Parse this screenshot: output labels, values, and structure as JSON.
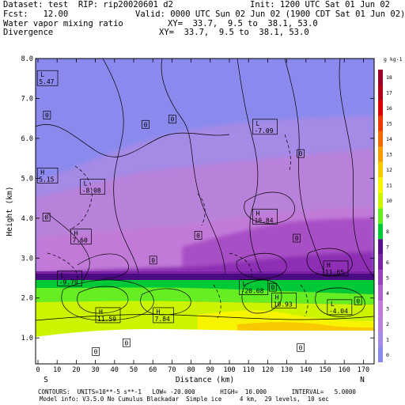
{
  "header": {
    "dataset": "Dataset: test  RIP: rip20020601 d2",
    "init": "Init: 1200 UTC Sat 01 Jun 02",
    "fcst": "Fcst:   12.00",
    "valid": "Valid: 0000 UTC Sun 02 Jun 02 (1900 CDT Sat 01 Jun 02)",
    "field1": "Water vapor mixing ratio",
    "field1_xy": "XY=  33.7,  9.5 to  38.1, 53.0",
    "field2": "Divergence",
    "field2_xy": "XY=  33.7,  9.5 to  38.1, 53.0"
  },
  "footer": {
    "contours": "CONTOURS:  UNITS=10**-5 s**-1   LOW= -20.000       HIGH=  10.000       INTERVAL=   5.0000",
    "model_info": "Model info: V3.5.0 No Cumulus Blackadar  Simple ice     4 km,  29 levels,  10 sec"
  },
  "chart_data": {
    "type": "heatmap",
    "xlabel": "Distance (km)",
    "ylabel": "Height (km)",
    "x_ticks": [
      0,
      10,
      20,
      30,
      40,
      50,
      60,
      70,
      80,
      90,
      100,
      110,
      120,
      130,
      140,
      150,
      160,
      170
    ],
    "y_ticks": [
      "1.0",
      "2.0",
      "3.0",
      "4.0",
      "5.0",
      "6.0",
      "7.0",
      "8.0"
    ],
    "xlim": [
      0,
      175
    ],
    "ylim": [
      0.35,
      8.0
    ],
    "x_end_labels": {
      "left": "S",
      "right": "N"
    },
    "colorbar": {
      "unit": "g kg-1",
      "levels": [
        "0",
        "1",
        "2",
        "3",
        "4",
        "5",
        "6",
        "7",
        "8",
        "9",
        "10",
        "11",
        "12",
        "13",
        "14",
        "15",
        "16",
        "17",
        "18"
      ],
      "colors": [
        "#8a8aee",
        "#a58ae6",
        "#b882da",
        "#c27ad8",
        "#b060cc",
        "#9a3fbe",
        "#7a22a8",
        "#5a0f8c",
        "#00c836",
        "#66ee22",
        "#ccf400",
        "#f8f400",
        "#f8c800",
        "#f89c00",
        "#f06a00",
        "#e83a00",
        "#d80000",
        "#b00018",
        "#980028"
      ]
    },
    "labels": [
      {
        "type": "H",
        "value": "5.15",
        "x": 0.5,
        "y": 5.08
      },
      {
        "type": "L",
        "value": "5.47",
        "x": 0.5,
        "y": 7.52
      },
      {
        "type": "L",
        "value": "-8.08",
        "x": 23,
        "y": 4.8
      },
      {
        "type": "H",
        "value": "7.60",
        "x": 18,
        "y": 3.55
      },
      {
        "type": "L",
        "value": "-9.79",
        "x": 11,
        "y": 2.5
      },
      {
        "type": "H",
        "value": "11.59",
        "x": 31,
        "y": 1.58
      },
      {
        "type": "H",
        "value": "7.84",
        "x": 61,
        "y": 1.58
      },
      {
        "type": "L",
        "value": "-7.09",
        "x": 113,
        "y": 6.3
      },
      {
        "type": "H",
        "value": "10.84",
        "x": 113,
        "y": 4.05
      },
      {
        "type": "L",
        "value": "-20.68",
        "x": 106,
        "y": 2.28
      },
      {
        "type": "H",
        "value": "10.93",
        "x": 123,
        "y": 1.95
      },
      {
        "type": "H",
        "value": "11.65",
        "x": 150,
        "y": 2.75
      },
      {
        "type": "L",
        "value": "-4.04",
        "x": 152,
        "y": 1.78
      }
    ],
    "zero_labels": [
      {
        "value": "0",
        "x": 4.5,
        "y": 6.58
      },
      {
        "value": "0",
        "x": 56,
        "y": 6.35
      },
      {
        "value": "0",
        "x": 70,
        "y": 6.48
      },
      {
        "value": "0",
        "x": 137,
        "y": 5.62
      },
      {
        "value": "0",
        "x": 4.2,
        "y": 4.03
      },
      {
        "value": "0",
        "x": 83.5,
        "y": 3.57
      },
      {
        "value": "0",
        "x": 135,
        "y": 3.5
      },
      {
        "value": "0",
        "x": 60,
        "y": 2.95
      },
      {
        "value": "0",
        "x": 122.5,
        "y": 2.27
      },
      {
        "value": "0",
        "x": 167,
        "y": 1.93
      },
      {
        "value": "0",
        "x": 46,
        "y": 0.88
      },
      {
        "value": "0",
        "x": 30,
        "y": 0.66
      },
      {
        "value": "0",
        "x": 137,
        "y": 0.76
      }
    ]
  }
}
